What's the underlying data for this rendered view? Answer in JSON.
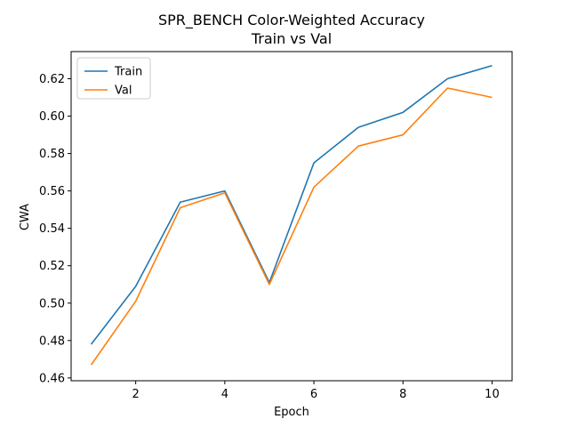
{
  "chart_data": {
    "type": "line",
    "title": "SPR_BENCH Color-Weighted Accuracy",
    "subtitle": "Train vs Val",
    "xlabel": "Epoch",
    "ylabel": "CWA",
    "x": [
      1,
      2,
      3,
      4,
      5,
      6,
      7,
      8,
      9,
      10
    ],
    "xticks": [
      2,
      4,
      6,
      8,
      10
    ],
    "yticks": [
      0.46,
      0.48,
      0.5,
      0.52,
      0.54,
      0.56,
      0.58,
      0.6,
      0.62
    ],
    "xlim": [
      0.55,
      10.45
    ],
    "ylim": [
      0.4585,
      0.6345
    ],
    "grid": false,
    "legend_position": "top-left",
    "series": [
      {
        "name": "Train",
        "color": "#1f77b4",
        "values": [
          0.478,
          0.509,
          0.554,
          0.56,
          0.511,
          0.575,
          0.594,
          0.602,
          0.62,
          0.627
        ]
      },
      {
        "name": "Val",
        "color": "#ff7f0e",
        "values": [
          0.467,
          0.501,
          0.551,
          0.559,
          0.51,
          0.562,
          0.584,
          0.59,
          0.615,
          0.61
        ]
      }
    ]
  }
}
